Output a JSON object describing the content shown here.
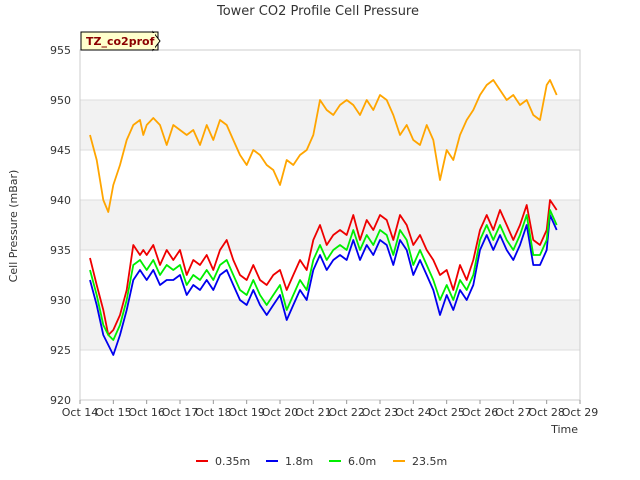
{
  "chart_data": {
    "type": "line",
    "title": "Tower CO2 Profile Cell Pressure",
    "xlabel": "Time",
    "ylabel": "Cell Pressure (mBar)",
    "ylim": [
      920,
      955
    ],
    "yticks": [
      920,
      925,
      930,
      935,
      940,
      945,
      950,
      955
    ],
    "xlim": [
      14,
      29
    ],
    "xticks": [
      14,
      15,
      16,
      17,
      18,
      19,
      20,
      21,
      22,
      23,
      24,
      25,
      26,
      27,
      28,
      29
    ],
    "xtick_labels": [
      "Oct 14",
      "Oct 15",
      "Oct 16",
      "Oct 17",
      "Oct 18",
      "Oct 19",
      "Oct 20",
      "Oct 21",
      "Oct 22",
      "Oct 23",
      "Oct 24",
      "Oct 25",
      "Oct 26",
      "Oct 27",
      "Oct 28",
      "Oct 29"
    ],
    "grid": true,
    "legend_position": "bottom",
    "annotation": "TZ_co2prof",
    "x": [
      14.3,
      14.5,
      14.7,
      14.85,
      15.0,
      15.2,
      15.4,
      15.6,
      15.8,
      15.9,
      16.0,
      16.2,
      16.4,
      16.6,
      16.8,
      17.0,
      17.2,
      17.4,
      17.6,
      17.8,
      18.0,
      18.2,
      18.4,
      18.6,
      18.8,
      19.0,
      19.2,
      19.4,
      19.6,
      19.8,
      20.0,
      20.2,
      20.4,
      20.6,
      20.8,
      21.0,
      21.2,
      21.4,
      21.6,
      21.8,
      22.0,
      22.2,
      22.4,
      22.6,
      22.8,
      23.0,
      23.2,
      23.4,
      23.6,
      23.8,
      24.0,
      24.2,
      24.4,
      24.6,
      24.8,
      25.0,
      25.2,
      25.4,
      25.6,
      25.8,
      26.0,
      26.2,
      26.4,
      26.6,
      26.8,
      27.0,
      27.2,
      27.4,
      27.6,
      27.8,
      28.0,
      28.1,
      28.3
    ],
    "series": [
      {
        "name": "0.35m",
        "color": "#ee0000",
        "values": [
          934.2,
          931.5,
          929.0,
          926.5,
          927.0,
          928.5,
          931.0,
          935.5,
          934.5,
          935.0,
          934.5,
          935.5,
          933.5,
          935.0,
          934.0,
          935.0,
          932.5,
          934.0,
          933.5,
          934.5,
          933.0,
          935.0,
          936.0,
          934.0,
          932.5,
          932.0,
          933.5,
          932.0,
          931.5,
          932.5,
          933.0,
          931.0,
          932.5,
          934.0,
          933.0,
          936.0,
          937.5,
          935.5,
          936.5,
          937.0,
          936.5,
          938.5,
          936.0,
          938.0,
          937.0,
          938.5,
          938.0,
          936.0,
          938.5,
          937.5,
          935.5,
          936.5,
          935.0,
          934.0,
          932.5,
          933.0,
          931.0,
          933.5,
          932.0,
          934.0,
          937.0,
          938.5,
          937.0,
          939.0,
          937.5,
          936.0,
          937.5,
          939.5,
          936.0,
          935.5,
          937.0,
          940.0,
          939.0
        ]
      },
      {
        "name": "1.8m",
        "color": "#0000ee",
        "values": [
          932.0,
          929.5,
          926.5,
          925.5,
          924.5,
          926.5,
          929.0,
          932.0,
          933.0,
          932.5,
          932.0,
          933.0,
          931.5,
          932.0,
          932.0,
          932.5,
          930.5,
          931.5,
          931.0,
          932.0,
          931.0,
          932.5,
          933.0,
          931.5,
          930.0,
          929.5,
          931.0,
          929.5,
          928.5,
          929.5,
          930.5,
          928.0,
          929.5,
          931.0,
          930.0,
          933.0,
          934.5,
          933.0,
          934.0,
          934.5,
          934.0,
          936.0,
          934.0,
          935.5,
          934.5,
          936.0,
          935.5,
          933.5,
          936.0,
          935.0,
          932.5,
          934.0,
          932.5,
          931.0,
          928.5,
          930.5,
          929.0,
          931.0,
          930.0,
          931.5,
          935.0,
          936.5,
          935.0,
          936.5,
          935.0,
          934.0,
          935.5,
          937.5,
          933.5,
          933.5,
          935.0,
          938.5,
          937.0
        ]
      },
      {
        "name": "6.0m",
        "color": "#00ee00",
        "values": [
          933.0,
          930.5,
          927.5,
          926.5,
          926.0,
          927.5,
          930.0,
          933.5,
          934.0,
          933.5,
          933.0,
          934.0,
          932.5,
          933.5,
          933.0,
          933.5,
          931.5,
          932.5,
          932.0,
          933.0,
          932.0,
          933.5,
          934.0,
          932.5,
          931.0,
          930.5,
          932.0,
          930.5,
          929.5,
          930.5,
          931.5,
          929.0,
          930.5,
          932.0,
          931.0,
          934.0,
          935.5,
          934.0,
          935.0,
          935.5,
          935.0,
          937.0,
          935.0,
          936.5,
          935.5,
          937.0,
          936.5,
          934.5,
          937.0,
          936.0,
          933.5,
          935.0,
          933.5,
          932.0,
          930.0,
          931.5,
          930.0,
          932.0,
          931.0,
          932.5,
          936.0,
          937.5,
          936.0,
          937.5,
          936.0,
          935.0,
          936.5,
          938.5,
          934.5,
          934.5,
          936.0,
          939.0,
          937.5
        ]
      },
      {
        "name": "23.5m",
        "color": "#ffa500",
        "values": [
          946.5,
          944.0,
          940.0,
          938.8,
          941.5,
          943.5,
          946.0,
          947.5,
          948.0,
          946.5,
          947.5,
          948.2,
          947.5,
          945.5,
          947.5,
          947.0,
          946.5,
          947.0,
          945.5,
          947.5,
          946.0,
          948.0,
          947.5,
          946.0,
          944.5,
          943.5,
          945.0,
          944.5,
          943.5,
          943.0,
          941.5,
          944.0,
          943.5,
          944.5,
          945.0,
          946.5,
          950.0,
          949.0,
          948.5,
          949.5,
          950.0,
          949.5,
          948.5,
          950.0,
          949.0,
          950.5,
          950.0,
          948.5,
          946.5,
          947.5,
          946.0,
          945.5,
          947.5,
          946.0,
          942.0,
          945.0,
          944.0,
          946.5,
          948.0,
          949.0,
          950.5,
          951.5,
          952.0,
          951.0,
          950.0,
          950.5,
          949.5,
          950.0,
          948.5,
          948.0,
          951.5,
          952.0,
          950.5
        ]
      }
    ]
  }
}
